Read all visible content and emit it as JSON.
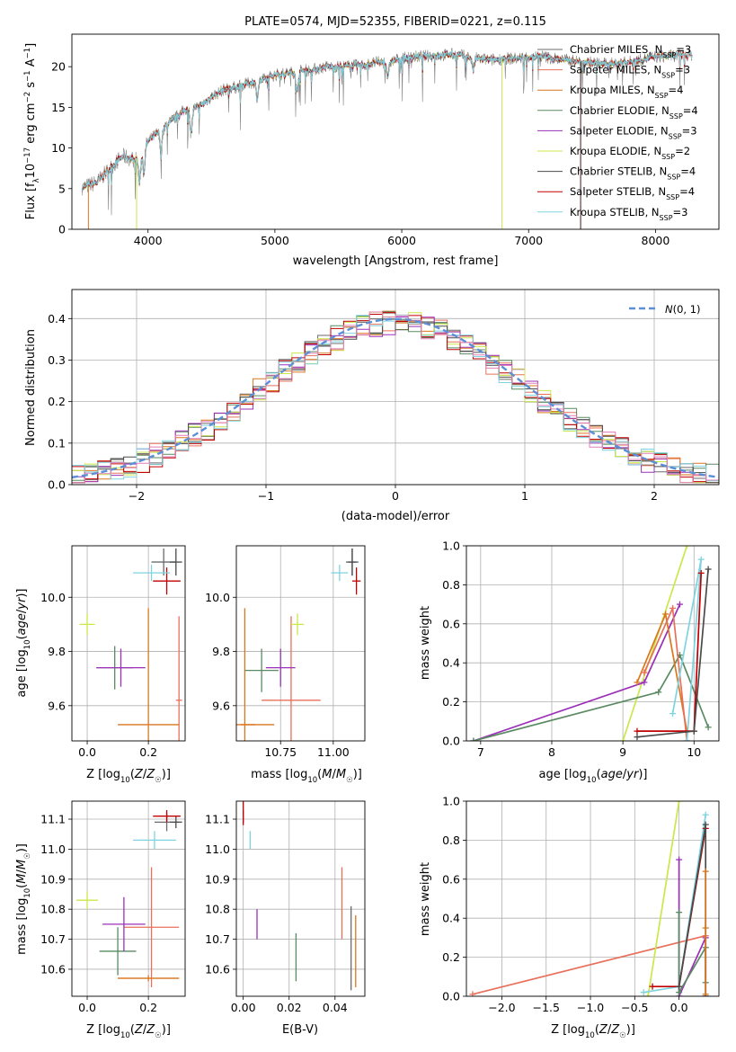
{
  "figure_title": "PLATE=0574, MJD=52355, FIBERID=0221, z=0.115",
  "series": [
    {
      "key": "ch_miles",
      "label": "Chabrier MILES, N",
      "nssp": "3",
      "color": "#6b6b6b"
    },
    {
      "key": "sa_miles",
      "label": "Salpeter MILES, N",
      "nssp": "3",
      "color": "#e8705a"
    },
    {
      "key": "kr_miles",
      "label": "Kroupa MILES, N",
      "nssp": "4",
      "color": "#d9771f"
    },
    {
      "key": "ch_elodie",
      "label": "Chabrier ELODIE, N",
      "nssp": "4",
      "color": "#5a8a62"
    },
    {
      "key": "sa_elodie",
      "label": "Salpeter ELODIE, N",
      "nssp": "3",
      "color": "#9b30b8"
    },
    {
      "key": "kr_elodie",
      "label": "Kroupa ELODIE, N",
      "nssp": "2",
      "color": "#c9e84a"
    },
    {
      "key": "ch_stelib",
      "label": "Chabrier STELIB, N",
      "nssp": "4",
      "color": "#4a4a4a"
    },
    {
      "key": "sa_stelib",
      "label": "Salpeter STELIB, N",
      "nssp": "4",
      "color": "#c00000"
    },
    {
      "key": "kr_stelib",
      "label": "Kroupa STELIB, N",
      "nssp": "3",
      "color": "#7fd3e0"
    }
  ],
  "legend_subscript": "SSP",
  "chart_data": [
    {
      "id": "spectrum",
      "type": "line",
      "xlabel": "wavelength [Angstrom, rest frame]",
      "ylabel": "Flux [f",
      "xlim": [
        3400,
        8500
      ],
      "ylim": [
        0,
        24
      ],
      "xticks": [
        4000,
        5000,
        6000,
        7000,
        8000
      ],
      "yticks": [
        0,
        5,
        10,
        15,
        20
      ],
      "data_x": [
        3500,
        3600,
        3700,
        3800,
        3900,
        4000,
        4100,
        4200,
        4300,
        4400,
        4500,
        4600,
        4700,
        4800,
        4900,
        5000,
        5100,
        5200,
        5300,
        5400,
        5500,
        5600,
        5700,
        5800,
        5900,
        6000,
        6100,
        6200,
        6300,
        6400,
        6500,
        6600,
        6700,
        6800,
        6900,
        7000,
        7100,
        7200,
        7300,
        7400,
        7500,
        7600,
        7700,
        7800,
        7900,
        8000,
        8100,
        8200,
        8300
      ],
      "data_y": [
        5.2,
        5.8,
        7.5,
        9.0,
        8.5,
        10.8,
        12.2,
        13.5,
        14.8,
        15.0,
        16.3,
        17.2,
        17.5,
        18.0,
        18.3,
        19.0,
        19.2,
        19.5,
        19.6,
        20.0,
        20.0,
        20.1,
        20.2,
        20.5,
        20.6,
        21.0,
        21.2,
        21.3,
        21.4,
        21.5,
        21.3,
        21.0,
        20.8,
        21.0,
        21.0,
        21.2,
        21.3,
        21.0,
        20.8,
        20.6,
        20.5,
        20.3,
        20.4,
        20.6,
        20.9,
        21.2,
        21.3,
        21.4,
        21.5
      ],
      "legend": "upper right"
    },
    {
      "id": "residuals",
      "type": "histogram",
      "xlabel": "(data-model)/error",
      "ylabel": "Normed distribution",
      "xlim": [
        -2.5,
        2.5
      ],
      "ylim": [
        0,
        0.47
      ],
      "xticks": [
        -2,
        -1,
        0,
        1,
        2
      ],
      "yticks": [
        0.0,
        0.1,
        0.2,
        0.3,
        0.4
      ],
      "bin_width": 0.1,
      "gaussian_label": "N(0,1)",
      "gaussian_color": "#5b8fd6",
      "legend": "upper right"
    },
    {
      "id": "age_vs_Z",
      "type": "scatter_errorbar",
      "xlabel": "Z [log10(Z/Z☉)]",
      "ylabel": "age  [log10(age/yr)]",
      "xlim": [
        -0.05,
        0.32
      ],
      "ylim": [
        9.47,
        10.19
      ],
      "xticks": [
        0.0,
        0.2
      ],
      "yticks": [
        9.6,
        9.8,
        10.0
      ],
      "points": [
        {
          "s": "ch_miles",
          "x": 0.25,
          "xe": 0.04,
          "y": 10.13,
          "ye": 0.05
        },
        {
          "s": "sa_miles",
          "x": 0.3,
          "xe": 0.01,
          "y": 9.62,
          "ye": 0.31
        },
        {
          "s": "kr_miles",
          "x": 0.2,
          "xe": 0.1,
          "y": 9.53,
          "ye": 0.43
        },
        {
          "s": "ch_elodie",
          "x": 0.09,
          "xe": 0.06,
          "y": 9.74,
          "ye": 0.08
        },
        {
          "s": "sa_elodie",
          "x": 0.11,
          "xe": 0.08,
          "y": 9.74,
          "ye": 0.07
        },
        {
          "s": "kr_elodie",
          "x": 0.0,
          "xe": 0.025,
          "y": 9.9,
          "ye": 0.04
        },
        {
          "s": "ch_stelib",
          "x": 0.29,
          "xe": 0.02,
          "y": 10.13,
          "ye": 0.05
        },
        {
          "s": "sa_stelib",
          "x": 0.26,
          "xe": 0.045,
          "y": 10.06,
          "ye": 0.05
        },
        {
          "s": "kr_stelib",
          "x": 0.21,
          "xe": 0.06,
          "y": 10.09,
          "ye": 0.03
        }
      ]
    },
    {
      "id": "age_vs_mass",
      "type": "scatter_errorbar",
      "xlabel": "mass [log10(M/M☉)]",
      "ylabel": "",
      "xlim": [
        10.54,
        11.15
      ],
      "ylim": [
        9.47,
        10.19
      ],
      "xticks": [
        10.75,
        11.0
      ],
      "yticks": [
        9.6,
        9.8,
        10.0
      ],
      "points": [
        {
          "s": "ch_miles",
          "x": 11.09,
          "xe": 0.03,
          "y": 10.13,
          "ye": 0.05
        },
        {
          "s": "sa_miles",
          "x": 10.8,
          "xe": 0.14,
          "y": 9.62,
          "ye": 0.31
        },
        {
          "s": "kr_miles",
          "x": 10.58,
          "xe": 0.05,
          "y": 9.53,
          "ye": 0.43
        },
        {
          "s": "ch_elodie",
          "x": 10.66,
          "xe": 0.08,
          "y": 9.73,
          "ye": 0.08
        },
        {
          "s": "sa_elodie",
          "x": 10.75,
          "xe": 0.07,
          "y": 9.74,
          "ye": 0.07
        },
        {
          "s": "kr_elodie",
          "x": 10.83,
          "xe": 0.03,
          "y": 9.9,
          "ye": 0.04
        },
        {
          "s": "ch_stelib",
          "x": 11.09,
          "xe": 0.02,
          "y": 10.13,
          "ye": 0.05
        },
        {
          "s": "sa_stelib",
          "x": 11.11,
          "xe": 0.02,
          "y": 10.06,
          "ye": 0.05
        },
        {
          "s": "kr_stelib",
          "x": 11.03,
          "xe": 0.04,
          "y": 10.09,
          "ye": 0.03
        },
        {
          "s": "kr_miles",
          "x": 10.64,
          "xe": 0.08,
          "y": 9.53,
          "ye": 0.0
        }
      ]
    },
    {
      "id": "weight_vs_age",
      "type": "line_markers",
      "xlabel": "age  [log10(age/yr)]",
      "ylabel": "mass weight",
      "xlim": [
        6.8,
        10.35
      ],
      "ylim": [
        0,
        1
      ],
      "xticks": [
        7,
        8,
        9,
        10
      ],
      "yticks": [
        0.0,
        0.2,
        0.4,
        0.6,
        0.8,
        1.0
      ],
      "series": [
        {
          "s": "kr_elodie",
          "x": [
            9.0,
            9.9
          ],
          "y": [
            0.0,
            1.0
          ]
        },
        {
          "s": "sa_elodie",
          "x": [
            6.9,
            9.3,
            9.8
          ],
          "y": [
            0.0,
            0.3,
            0.7
          ]
        },
        {
          "s": "ch_elodie",
          "x": [
            6.9,
            9.5,
            9.8,
            10.2
          ],
          "y": [
            0.0,
            0.25,
            0.44,
            0.07
          ]
        },
        {
          "s": "kr_miles",
          "x": [
            9.2,
            9.6,
            9.9
          ],
          "y": [
            0.3,
            0.65,
            0.05
          ]
        },
        {
          "s": "sa_miles",
          "x": [
            9.3,
            9.7,
            9.9
          ],
          "y": [
            0.35,
            0.68,
            0.0
          ]
        },
        {
          "s": "kr_stelib",
          "x": [
            9.7,
            10.1,
            9.9
          ],
          "y": [
            0.14,
            0.93,
            0.0
          ]
        },
        {
          "s": "sa_stelib",
          "x": [
            9.2,
            10.0,
            10.1
          ],
          "y": [
            0.05,
            0.05,
            0.86
          ]
        },
        {
          "s": "ch_stelib",
          "x": [
            9.2,
            10.0,
            10.2,
            10.0
          ],
          "y": [
            0.02,
            0.05,
            0.88,
            0.05
          ]
        }
      ]
    },
    {
      "id": "mass_vs_Z",
      "type": "scatter_errorbar",
      "xlabel": "Z [log10(Z/Z☉)]",
      "ylabel": "mass [log10(M/M☉)]",
      "xlim": [
        -0.05,
        0.32
      ],
      "ylim": [
        10.51,
        11.16
      ],
      "xticks": [
        0.0,
        0.2
      ],
      "yticks": [
        10.6,
        10.7,
        10.8,
        10.9,
        11.0,
        11.1
      ],
      "points": [
        {
          "s": "ch_miles",
          "x": 0.26,
          "xe": 0.04,
          "y": 11.09,
          "ye": 0.03
        },
        {
          "s": "sa_miles",
          "x": 0.21,
          "xe": 0.09,
          "y": 10.74,
          "ye": 0.2
        },
        {
          "s": "kr_miles",
          "x": 0.2,
          "xe": 0.1,
          "y": 10.57,
          "ye": 0.01
        },
        {
          "s": "ch_elodie",
          "x": 0.1,
          "xe": 0.06,
          "y": 10.66,
          "ye": 0.08
        },
        {
          "s": "sa_elodie",
          "x": 0.12,
          "xe": 0.07,
          "y": 10.75,
          "ye": 0.09
        },
        {
          "s": "kr_elodie",
          "x": 0.0,
          "xe": 0.035,
          "y": 10.83,
          "ye": 0.03
        },
        {
          "s": "ch_stelib",
          "x": 0.29,
          "xe": 0.02,
          "y": 11.09,
          "ye": 0.02
        },
        {
          "s": "sa_stelib",
          "x": 0.26,
          "xe": 0.045,
          "y": 11.11,
          "ye": 0.02
        },
        {
          "s": "kr_stelib",
          "x": 0.22,
          "xe": 0.07,
          "y": 11.03,
          "ye": 0.03
        },
        {
          "s": "kr_miles",
          "x": 0.2,
          "xe": 0.1,
          "y": 10.57,
          "ye": 0.0
        }
      ]
    },
    {
      "id": "mass_vs_ebv",
      "type": "scatter_errorbar",
      "xlabel": "E(B-V)",
      "ylabel": "",
      "xlim": [
        -0.003,
        0.053
      ],
      "ylim": [
        10.51,
        11.16
      ],
      "xticks": [
        0.0,
        0.02,
        0.04
      ],
      "yticks": [
        10.6,
        10.7,
        10.8,
        10.9,
        11.0,
        11.1
      ],
      "points": [
        {
          "s": "ch_miles",
          "x": 0.047,
          "xe": 0.0,
          "y": 10.67,
          "ye": 0.14
        },
        {
          "s": "sa_miles",
          "x": 0.043,
          "xe": 0.0,
          "y": 10.82,
          "ye": 0.12
        },
        {
          "s": "kr_miles",
          "x": 0.049,
          "xe": 0.0,
          "y": 10.66,
          "ye": 0.12
        },
        {
          "s": "ch_elodie",
          "x": 0.023,
          "xe": 0.0,
          "y": 10.64,
          "ye": 0.08
        },
        {
          "s": "sa_elodie",
          "x": 0.006,
          "xe": 0.0,
          "y": 10.75,
          "ye": 0.05
        },
        {
          "s": "kr_elodie",
          "x": 0.0,
          "xe": 0.0,
          "y": 10.82,
          "ye": 0.0
        },
        {
          "s": "ch_stelib",
          "x": 0.0,
          "xe": 0.0,
          "y": 11.11,
          "ye": 0.02
        },
        {
          "s": "sa_stelib",
          "x": 0.0,
          "xe": 0.0,
          "y": 11.12,
          "ye": 0.04
        },
        {
          "s": "kr_stelib",
          "x": 0.003,
          "xe": 0.0,
          "y": 11.03,
          "ye": 0.03
        }
      ]
    },
    {
      "id": "weight_vs_Z",
      "type": "line_markers",
      "xlabel": "Z [log10(Z/Z☉)]",
      "ylabel": "mass weight",
      "xlim": [
        -2.4,
        0.45
      ],
      "ylim": [
        0,
        1
      ],
      "xticks": [
        -2.0,
        -1.5,
        -1.0,
        -0.5,
        0.0
      ],
      "yticks": [
        0.0,
        0.2,
        0.4,
        0.6,
        0.8,
        1.0
      ],
      "series": [
        {
          "s": "sa_miles",
          "x": [
            -2.33,
            0.3
          ],
          "y": [
            0.01,
            0.31
          ]
        },
        {
          "s": "kr_elodie",
          "x": [
            -0.35,
            0.0
          ],
          "y": [
            0.0,
            1.0
          ]
        },
        {
          "s": "sa_elodie",
          "x": [
            0.0,
            0.0,
            0.3,
            0.3
          ],
          "y": [
            0.7,
            0.0,
            0.3,
            0.0
          ]
        },
        {
          "s": "ch_elodie",
          "x": [
            0.0,
            0.0,
            0.3,
            0.3
          ],
          "y": [
            0.43,
            0.02,
            0.25,
            0.07
          ]
        },
        {
          "s": "kr_stelib",
          "x": [
            -0.4,
            0.0,
            0.3
          ],
          "y": [
            0.02,
            0.05,
            0.93
          ]
        },
        {
          "s": "sa_stelib",
          "x": [
            -0.3,
            0.0,
            0.3
          ],
          "y": [
            0.05,
            0.05,
            0.86
          ]
        },
        {
          "s": "ch_stelib",
          "x": [
            0.0,
            0.3,
            0.3
          ],
          "y": [
            0.05,
            0.88,
            0.0
          ]
        },
        {
          "s": "kr_miles",
          "x": [
            0.3,
            0.3,
            0.3
          ],
          "y": [
            0.64,
            0.35,
            0.01
          ]
        }
      ]
    }
  ]
}
